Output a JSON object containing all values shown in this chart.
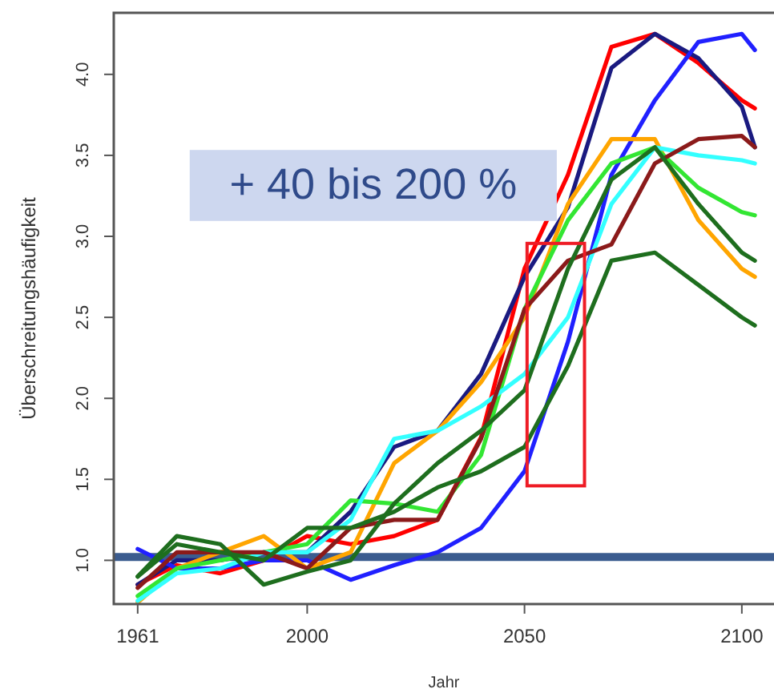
{
  "chart_data": {
    "type": "line",
    "xlabel": "Jahr",
    "ylabel": "Überschreitungshäufigkeit",
    "annotations": [
      "+ 40 bis 200 %"
    ],
    "x": [
      1961,
      1970,
      1980,
      1990,
      2000,
      2010,
      2020,
      2030,
      2040,
      2050,
      2060,
      2070,
      2080,
      2090,
      2100,
      2103
    ],
    "xlim": [
      1955.5,
      2107.4
    ],
    "xticks": [
      1961,
      2000,
      2050,
      2100
    ],
    "ylim": [
      0.73,
      4.38
    ],
    "yticks": [
      {
        "value": 1,
        "label": "1.0"
      },
      {
        "value": 1.5,
        "label": "1.5"
      },
      {
        "value": 2,
        "label": "2.0"
      },
      {
        "value": 2.5,
        "label": "2.5"
      },
      {
        "value": 3,
        "label": "3.0"
      },
      {
        "value": 3.5,
        "label": "3.5"
      },
      {
        "value": 4,
        "label": "4.0"
      }
    ],
    "grid": false,
    "line_style": "solid",
    "marker": "none",
    "ref_lines": [
      {
        "axis": "y",
        "value": 1.02,
        "color": "#3b5c8f"
      }
    ],
    "series": [
      {
        "color": "#ff0000",
        "values": [
          0.85,
          0.97,
          0.92,
          1.0,
          1.15,
          1.1,
          1.15,
          1.25,
          1.76,
          2.8,
          3.38,
          4.17,
          4.25,
          4.07,
          3.84,
          3.79
        ]
      },
      {
        "color": "#1a1a80",
        "values": [
          0.85,
          1.0,
          1.0,
          1.05,
          1.05,
          1.3,
          1.7,
          1.8,
          2.15,
          2.75,
          3.18,
          4.04,
          4.25,
          4.1,
          3.8,
          3.55
        ]
      },
      {
        "color": "#2020ff",
        "values": [
          1.07,
          0.95,
          0.95,
          1.0,
          1.0,
          0.88,
          0.97,
          1.05,
          1.2,
          1.55,
          2.35,
          3.38,
          3.84,
          4.2,
          4.25,
          4.15
        ]
      },
      {
        "color": "#ffa500",
        "values": [
          0.74,
          0.95,
          1.05,
          1.15,
          0.95,
          1.05,
          1.6,
          1.8,
          2.1,
          2.5,
          3.2,
          3.6,
          3.6,
          3.1,
          2.8,
          2.75
        ]
      },
      {
        "color": "#33e633",
        "values": [
          0.78,
          0.95,
          1.0,
          1.05,
          1.1,
          1.37,
          1.35,
          1.3,
          1.65,
          2.55,
          3.1,
          3.45,
          3.55,
          3.3,
          3.15,
          3.13
        ]
      },
      {
        "color": "#33ffff",
        "values": [
          0.75,
          0.92,
          0.95,
          1.05,
          1.05,
          1.25,
          1.75,
          1.8,
          1.95,
          2.15,
          2.5,
          3.2,
          3.55,
          3.5,
          3.47,
          3.45
        ]
      },
      {
        "color": "#8b1a1a",
        "values": [
          0.83,
          1.05,
          1.05,
          1.05,
          0.95,
          1.2,
          1.25,
          1.25,
          1.75,
          2.55,
          2.85,
          2.95,
          3.45,
          3.6,
          3.62,
          3.55
        ]
      },
      {
        "color": "#1e6e1e",
        "values": [
          0.9,
          1.15,
          1.1,
          0.85,
          0.93,
          1.0,
          1.35,
          1.6,
          1.8,
          2.05,
          2.8,
          3.35,
          3.55,
          3.2,
          2.9,
          2.85
        ]
      },
      {
        "color": "#1e6e1e",
        "values": [
          0.9,
          1.1,
          1.05,
          1.0,
          1.2,
          1.2,
          1.3,
          1.45,
          1.55,
          1.7,
          2.2,
          2.85,
          2.9,
          2.7,
          2.5,
          2.45
        ]
      }
    ]
  }
}
